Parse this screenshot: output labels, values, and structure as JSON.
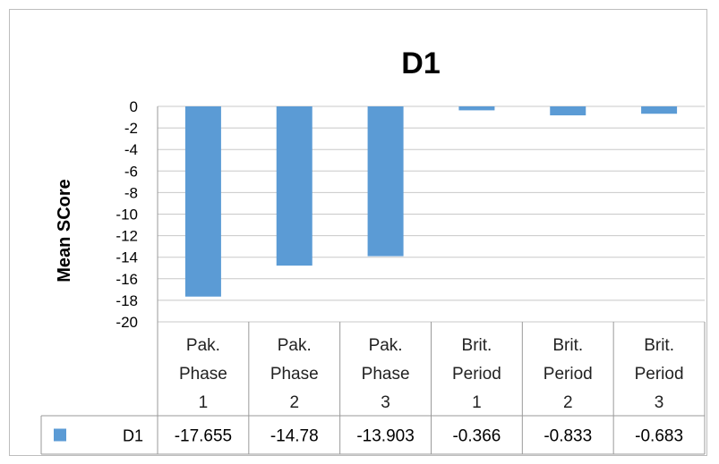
{
  "chart_data": {
    "type": "bar",
    "title": "D1",
    "ylabel": "Mean SCore",
    "xlabel": "",
    "ylim": [
      -20,
      0
    ],
    "yticks": [
      0,
      -2,
      -4,
      -6,
      -8,
      -10,
      -12,
      -14,
      -16,
      -18,
      -20
    ],
    "grid": true,
    "legend": "data-table",
    "categories": [
      [
        "Pak.",
        "Phase",
        "1"
      ],
      [
        "Pak.",
        "Phase",
        "2"
      ],
      [
        "Pak.",
        "Phase",
        "3"
      ],
      [
        "Brit.",
        "Period",
        "1"
      ],
      [
        "Brit.",
        "Period",
        "2"
      ],
      [
        "Brit.",
        "Period",
        "3"
      ]
    ],
    "series": [
      {
        "name": "D1",
        "values": [
          -17.655,
          -14.78,
          -13.903,
          -0.366,
          -0.833,
          -0.683
        ],
        "labels": [
          "-17.655",
          "-14.78",
          "-13.903",
          "-0.366",
          "-0.833",
          "-0.683"
        ],
        "color": "#5B9BD5"
      }
    ]
  }
}
